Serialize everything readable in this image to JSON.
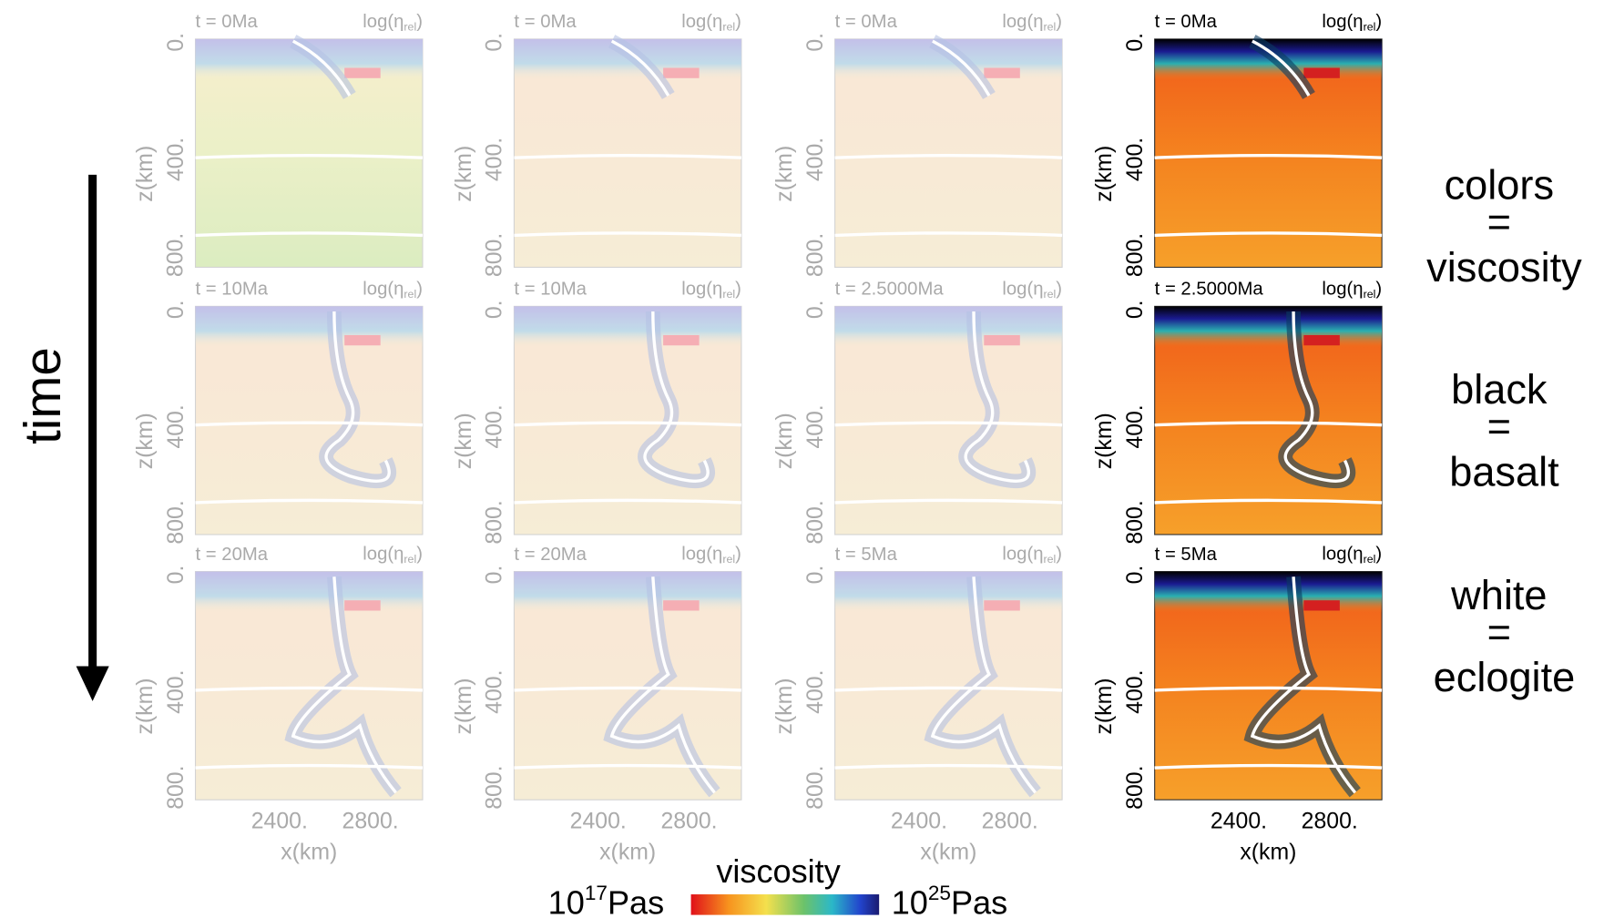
{
  "side_label": "time",
  "axis": {
    "y_label": "z(km)",
    "y_ticks": [
      "0.",
      "400.",
      "800."
    ],
    "x_label": "x(km)",
    "x_ticks": [
      "2400.",
      "2800."
    ],
    "field_label": {
      "main": "log(η",
      "sub": "rel",
      "close": ")"
    }
  },
  "columns": [
    {
      "times": [
        "t = 0Ma",
        "t = 10Ma",
        "t = 20Ma"
      ]
    },
    {
      "times": [
        "t = 0Ma",
        "t = 10Ma",
        "t = 20Ma"
      ]
    },
    {
      "times": [
        "t = 0Ma",
        "t = 2.5000Ma",
        "t = 5Ma"
      ]
    },
    {
      "times": [
        "t = 0Ma",
        "t = 2.5000Ma",
        "t = 5Ma"
      ]
    }
  ],
  "legend": [
    {
      "word": "colors",
      "eq": "=",
      "meaning": "viscosity"
    },
    {
      "word": "black",
      "eq": "=",
      "meaning": "basalt"
    },
    {
      "word": "white",
      "eq": "=",
      "meaning": "eclogite"
    }
  ],
  "colorbar": {
    "title": "viscosity",
    "low": {
      "base": "10",
      "exp": "17",
      "unit": "Pas"
    },
    "high": {
      "base": "10",
      "exp": "25",
      "unit": "Pas"
    }
  }
}
